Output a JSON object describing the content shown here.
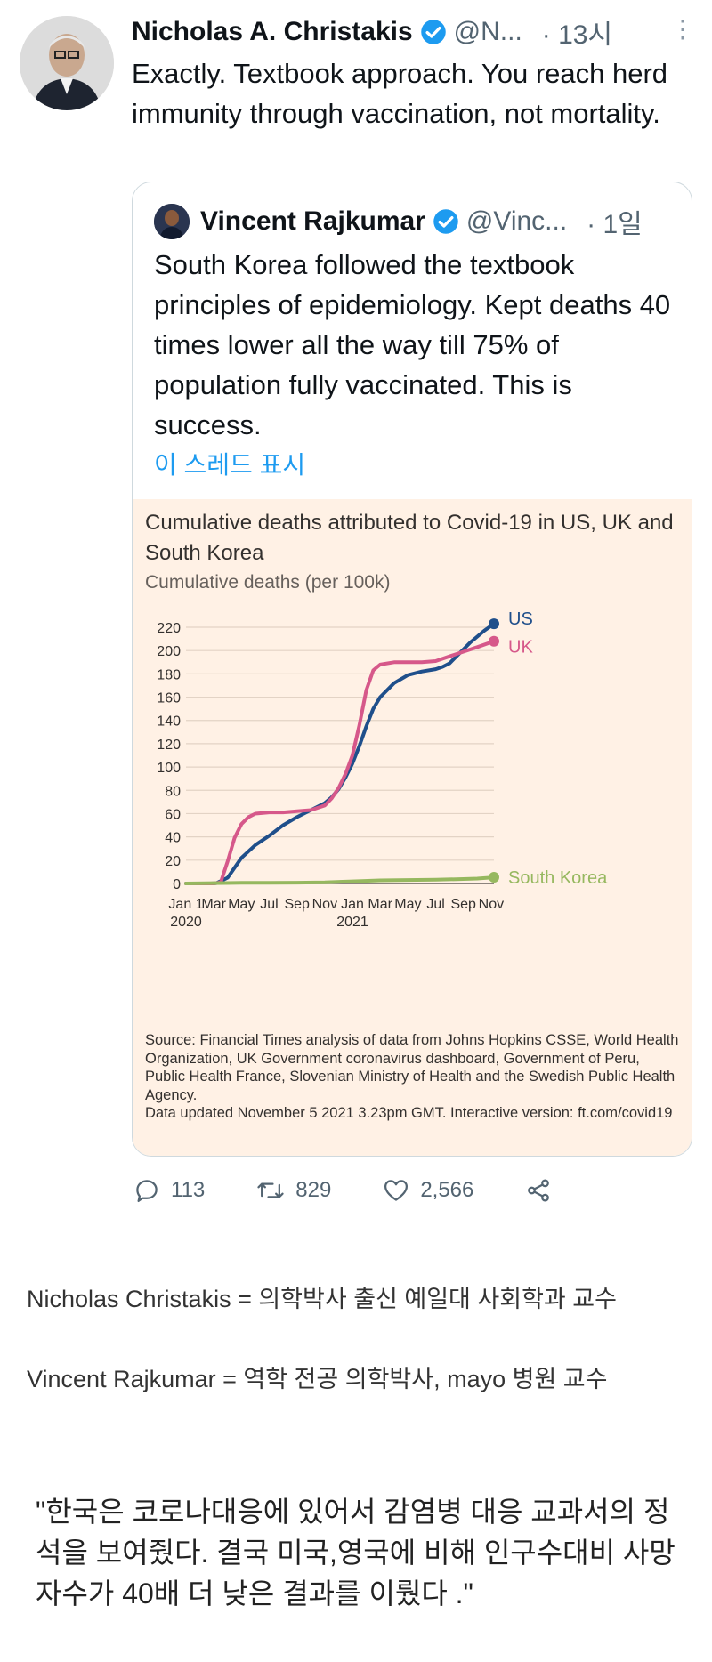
{
  "tweet": {
    "author_name": "Nicholas A. Christakis",
    "handle": "@N...",
    "time": "· 13시",
    "text": "Exactly. Textbook approach. You reach herd immunity through vaccination, not mortality."
  },
  "quoted": {
    "author_name": "Vincent Rajkumar",
    "handle": "@Vinc...",
    "time": "· 1일",
    "text": "South Korea followed the textbook principles of epidemiology. Kept deaths 40 times lower all the way till 75% of population fully vaccinated. This is success.",
    "show_thread": "이 스레드 표시"
  },
  "chart": {
    "source": "Source: Financial Times analysis of data from Johns Hopkins CSSE, World Health Organization, UK Government coronavirus dashboard, Government of Peru, Public Health France, Slovenian Ministry of Health and the Swedish Public Health Agency.",
    "updated": "Data updated November 5 2021 3.23pm GMT. Interactive version: ft.com/covid19"
  },
  "chart_data": {
    "type": "line",
    "title": "Cumulative deaths attributed to Covid-19 in US, UK and South Korea",
    "ylabel": "Cumulative deaths (per 100k)",
    "xlabel": "",
    "ylim": [
      0,
      220
    ],
    "yticks": [
      0,
      20,
      40,
      60,
      80,
      100,
      120,
      140,
      160,
      180,
      200,
      220
    ],
    "x_ticks": [
      "Jan 1",
      "Mar",
      "May",
      "Jul",
      "Sep",
      "Nov",
      "Jan",
      "Mar",
      "May",
      "Jul",
      "Sep",
      "Nov"
    ],
    "x_tick_months": [
      0,
      2,
      4,
      6,
      8,
      10,
      12,
      14,
      16,
      18,
      20,
      22
    ],
    "x_year_labels": [
      {
        "month": 0,
        "label": "2020"
      },
      {
        "month": 12,
        "label": "2021"
      }
    ],
    "x_range": [
      0,
      22.2
    ],
    "series": [
      {
        "name": "US",
        "color": "#1f4f8b",
        "x": [
          0,
          1,
          1.8,
          2.2,
          3,
          4,
          5,
          6,
          7,
          8,
          9,
          10,
          10.5,
          11,
          11.5,
          12,
          12.5,
          13,
          13.5,
          14,
          15,
          16,
          17,
          18,
          18.5,
          19,
          19.5,
          20,
          20.5,
          21,
          21.5,
          22.2
        ],
        "y": [
          0,
          0,
          0,
          0.3,
          5,
          22,
          33,
          41,
          50,
          57,
          63,
          69,
          74,
          81,
          91,
          103,
          118,
          135,
          150,
          160,
          172,
          179,
          182,
          184,
          186,
          189,
          195,
          201,
          207,
          212,
          217,
          223
        ]
      },
      {
        "name": "UK",
        "color": "#d6588a",
        "x": [
          0,
          1,
          2,
          2.5,
          3,
          3.5,
          4,
          4.5,
          5,
          6,
          7,
          8,
          9,
          10,
          10.5,
          11,
          11.5,
          12,
          12.5,
          13,
          13.5,
          14,
          15,
          16,
          17,
          18,
          19,
          20,
          21,
          22.2
        ],
        "y": [
          0,
          0,
          0,
          1,
          19,
          39,
          51,
          57,
          60,
          61,
          61,
          62,
          63,
          67,
          73,
          82,
          94,
          110,
          136,
          166,
          183,
          188,
          190,
          190,
          190,
          191,
          195,
          199,
          203,
          208
        ]
      },
      {
        "name": "South Korea",
        "color": "#96b85f",
        "x": [
          0,
          2,
          4,
          6,
          8,
          10,
          12,
          14,
          16,
          18,
          20,
          21,
          22.2
        ],
        "y": [
          0,
          0.3,
          0.5,
          0.6,
          0.7,
          0.9,
          1.8,
          2.7,
          3.0,
          3.2,
          3.8,
          4.2,
          5.3
        ]
      }
    ]
  },
  "actions": {
    "replies": "113",
    "retweets": "829",
    "likes": "2,566"
  },
  "captions": {
    "line1": "Nicholas Christakis = 의학박사 출신 예일대 사회학과 교수",
    "line2": "Vincent Rajkumar =  역학 전공 의학박사, mayo 병원 교수"
  },
  "quote_ko": "\"한국은 코로나대응에 있어서 감염병 대응 교과서의 정석을 보여줬다. 결국 미국,영국에 비해 인구수대비 사망자수가 40배 더 낮은 결과를 이뤘다 .\""
}
